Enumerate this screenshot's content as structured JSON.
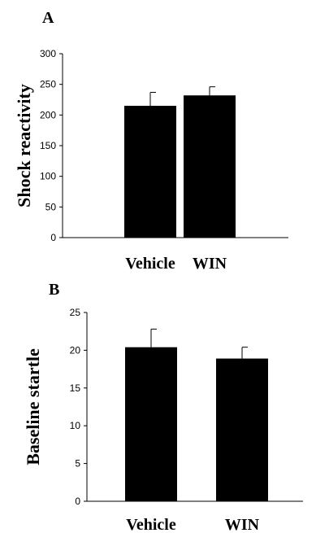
{
  "chart_data": [
    {
      "type": "bar",
      "panel": "A",
      "ylabel": "Shock reactivity",
      "categories": [
        "Vehicle",
        "WIN"
      ],
      "values": [
        215,
        232
      ],
      "errors": [
        22,
        14
      ],
      "ylim": [
        0,
        300
      ],
      "yticks": [
        0,
        50,
        100,
        150,
        200,
        250,
        300
      ],
      "bar_color": "#000000",
      "grid": false
    },
    {
      "type": "bar",
      "panel": "B",
      "ylabel": "Baseline startle",
      "categories": [
        "Vehicle",
        "WIN"
      ],
      "values": [
        20.4,
        18.9
      ],
      "errors": [
        2.4,
        1.5
      ],
      "ylim": [
        0,
        25
      ],
      "yticks": [
        0,
        5,
        10,
        15,
        20,
        25
      ],
      "bar_color": "#000000",
      "grid": false
    }
  ]
}
